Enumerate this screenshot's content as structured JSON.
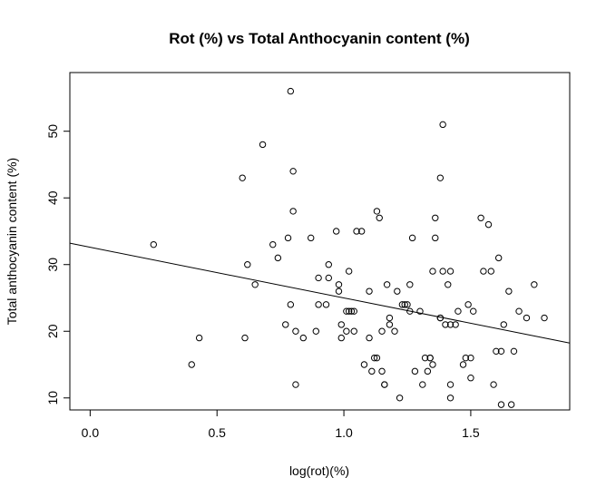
{
  "chart_data": {
    "type": "scatter",
    "title": "Rot (%) vs Total Anthocyanin content (%)",
    "xlabel": "log(rot)(%)",
    "ylabel": "Total anthocyanin content (%)",
    "xlim": [
      -0.08,
      1.89
    ],
    "ylim": [
      8.2,
      58.8
    ],
    "xticks": [
      {
        "value": 0.0,
        "label": "0.0"
      },
      {
        "value": 0.5,
        "label": "0.5"
      },
      {
        "value": 1.0,
        "label": "1.0"
      },
      {
        "value": 1.5,
        "label": "1.5"
      }
    ],
    "yticks": [
      {
        "value": 10,
        "label": "10"
      },
      {
        "value": 20,
        "label": "20"
      },
      {
        "value": 30,
        "label": "30"
      },
      {
        "value": 40,
        "label": "40"
      },
      {
        "value": 50,
        "label": "50"
      }
    ],
    "regression": {
      "intercept": 32.6,
      "slope": -7.6
    },
    "points": [
      [
        0.25,
        33
      ],
      [
        0.4,
        15
      ],
      [
        0.43,
        19
      ],
      [
        0.6,
        43
      ],
      [
        0.61,
        19
      ],
      [
        0.62,
        30
      ],
      [
        0.65,
        27
      ],
      [
        0.68,
        48
      ],
      [
        0.72,
        33
      ],
      [
        0.74,
        31
      ],
      [
        0.77,
        21
      ],
      [
        0.78,
        34
      ],
      [
        0.79,
        56
      ],
      [
        0.79,
        24
      ],
      [
        0.8,
        44
      ],
      [
        0.8,
        38
      ],
      [
        0.81,
        20
      ],
      [
        0.81,
        12
      ],
      [
        0.84,
        19
      ],
      [
        0.87,
        34
      ],
      [
        0.89,
        20
      ],
      [
        0.9,
        24
      ],
      [
        0.9,
        28
      ],
      [
        0.93,
        24
      ],
      [
        0.94,
        28
      ],
      [
        0.94,
        30
      ],
      [
        0.97,
        35
      ],
      [
        0.98,
        26
      ],
      [
        0.98,
        27
      ],
      [
        0.99,
        21
      ],
      [
        0.99,
        19
      ],
      [
        1.01,
        23
      ],
      [
        1.01,
        20
      ],
      [
        1.02,
        29
      ],
      [
        1.02,
        23
      ],
      [
        1.03,
        23
      ],
      [
        1.04,
        23
      ],
      [
        1.04,
        20
      ],
      [
        1.05,
        35
      ],
      [
        1.07,
        35
      ],
      [
        1.08,
        15
      ],
      [
        1.1,
        19
      ],
      [
        1.1,
        26
      ],
      [
        1.11,
        14
      ],
      [
        1.12,
        16
      ],
      [
        1.13,
        16
      ],
      [
        1.13,
        38
      ],
      [
        1.14,
        37
      ],
      [
        1.15,
        20
      ],
      [
        1.15,
        14
      ],
      [
        1.16,
        12
      ],
      [
        1.16,
        12
      ],
      [
        1.17,
        27
      ],
      [
        1.18,
        22
      ],
      [
        1.18,
        21
      ],
      [
        1.2,
        20
      ],
      [
        1.21,
        26
      ],
      [
        1.22,
        10
      ],
      [
        1.23,
        24
      ],
      [
        1.24,
        24
      ],
      [
        1.25,
        24
      ],
      [
        1.26,
        23
      ],
      [
        1.26,
        27
      ],
      [
        1.27,
        34
      ],
      [
        1.28,
        14
      ],
      [
        1.3,
        23
      ],
      [
        1.31,
        12
      ],
      [
        1.32,
        16
      ],
      [
        1.33,
        14
      ],
      [
        1.34,
        16
      ],
      [
        1.34,
        16
      ],
      [
        1.35,
        15
      ],
      [
        1.35,
        29
      ],
      [
        1.36,
        37
      ],
      [
        1.36,
        34
      ],
      [
        1.38,
        22
      ],
      [
        1.38,
        22
      ],
      [
        1.38,
        43
      ],
      [
        1.39,
        29
      ],
      [
        1.39,
        51
      ],
      [
        1.4,
        21
      ],
      [
        1.41,
        27
      ],
      [
        1.42,
        29
      ],
      [
        1.42,
        21
      ],
      [
        1.42,
        12
      ],
      [
        1.42,
        10
      ],
      [
        1.44,
        21
      ],
      [
        1.45,
        23
      ],
      [
        1.47,
        15
      ],
      [
        1.48,
        16
      ],
      [
        1.49,
        24
      ],
      [
        1.5,
        13
      ],
      [
        1.5,
        16
      ],
      [
        1.51,
        23
      ],
      [
        1.54,
        37
      ],
      [
        1.55,
        29
      ],
      [
        1.57,
        36
      ],
      [
        1.58,
        29
      ],
      [
        1.59,
        12
      ],
      [
        1.6,
        17
      ],
      [
        1.61,
        31
      ],
      [
        1.62,
        17
      ],
      [
        1.62,
        9
      ],
      [
        1.63,
        21
      ],
      [
        1.65,
        26
      ],
      [
        1.66,
        9
      ],
      [
        1.67,
        17
      ],
      [
        1.69,
        23
      ],
      [
        1.72,
        22
      ],
      [
        1.75,
        27
      ],
      [
        1.79,
        22
      ]
    ]
  }
}
